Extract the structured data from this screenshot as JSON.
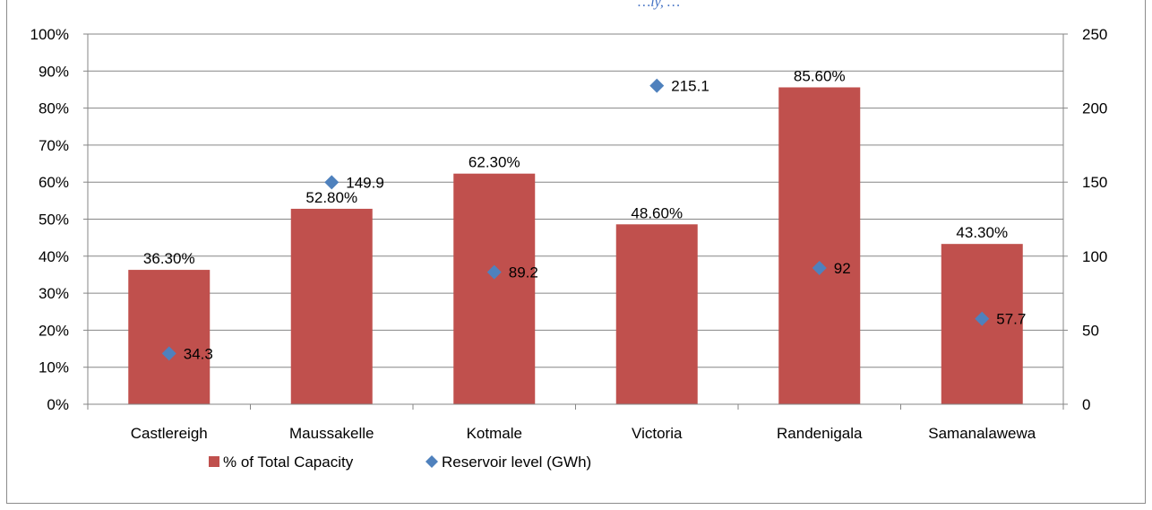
{
  "title_fragment": "…ly, …",
  "colors": {
    "bar": "#c0504d",
    "marker": "#4f81bd",
    "axis": "#868686",
    "title": "#4472c4"
  },
  "chart_data": {
    "type": "bar",
    "categories": [
      "Castlereigh",
      "Maussakelle",
      "Kotmale",
      "Victoria",
      "Randenigala",
      "Samanalawewa"
    ],
    "series": [
      {
        "name": "% of Total Capacity",
        "kind": "bar",
        "axis": "left",
        "values": [
          36.3,
          52.8,
          62.3,
          48.6,
          85.6,
          43.3
        ],
        "labels": [
          "36.30%",
          "52.80%",
          "62.30%",
          "48.60%",
          "85.60%",
          "43.30%"
        ]
      },
      {
        "name": "Reservoir level (GWh)",
        "kind": "scatter",
        "marker": "diamond",
        "axis": "right",
        "values": [
          34.3,
          149.9,
          89.2,
          215.1,
          92,
          57.7
        ],
        "labels": [
          "34.3",
          "149.9",
          "89.2",
          "215.1",
          "92",
          "57.7"
        ]
      }
    ],
    "left_axis": {
      "ylim": [
        0,
        100
      ],
      "ticks": [
        "0%",
        "10%",
        "20%",
        "30%",
        "40%",
        "50%",
        "60%",
        "70%",
        "80%",
        "90%",
        "100%"
      ]
    },
    "right_axis": {
      "ylim": [
        0,
        250
      ],
      "ticks": [
        "0",
        "50",
        "100",
        "150",
        "200",
        "250"
      ]
    },
    "grid": true,
    "legend": "bottom"
  }
}
